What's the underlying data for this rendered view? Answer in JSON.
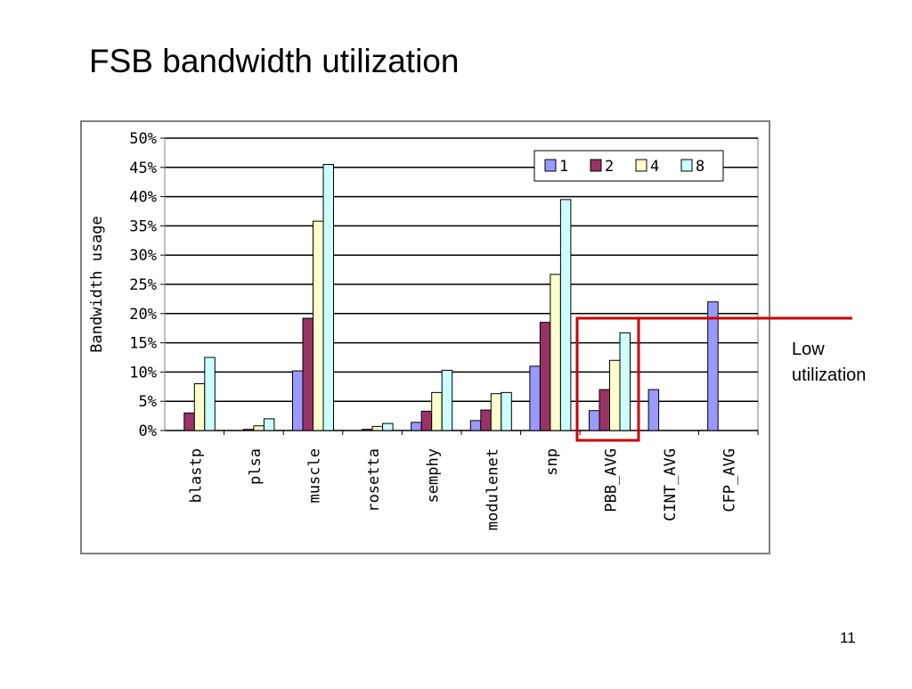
{
  "slide": {
    "title": "FSB bandwidth utilization",
    "annotation_line1": "Low",
    "annotation_line2": "utilization",
    "page_number": "11"
  },
  "colors": {
    "series_1": "#9999ff",
    "series_2": "#993366",
    "series_4": "#ffffcc",
    "series_8": "#ccffff",
    "highlight": "#cc0000",
    "grid": "#000000"
  },
  "chart_data": {
    "type": "bar",
    "ylabel": "Bandwidth usage",
    "ylim": [
      0,
      50
    ],
    "yticks": [
      "0%",
      "5%",
      "10%",
      "15%",
      "20%",
      "25%",
      "30%",
      "35%",
      "40%",
      "45%",
      "50%"
    ],
    "categories": [
      "blastp",
      "plsa",
      "muscle",
      "rosetta",
      "semphy",
      "modulenet",
      "snp",
      "PBB_AVG",
      "CINT_AVG",
      "CFP_AVG"
    ],
    "series": [
      {
        "name": "1",
        "values": [
          0,
          0,
          10.2,
          0,
          1.4,
          1.7,
          11.0,
          3.4,
          7.0,
          22.0
        ]
      },
      {
        "name": "2",
        "values": [
          3.0,
          0.2,
          19.2,
          0.2,
          3.3,
          3.5,
          18.5,
          7.0,
          0,
          0
        ]
      },
      {
        "name": "4",
        "values": [
          8.0,
          0.8,
          35.8,
          0.7,
          6.5,
          6.3,
          26.7,
          12.0,
          0,
          0
        ]
      },
      {
        "name": "8",
        "values": [
          12.5,
          2.0,
          45.5,
          1.2,
          10.3,
          6.5,
          39.5,
          16.7,
          0,
          0
        ]
      }
    ],
    "legend_position": "top-right",
    "grid": true,
    "highlight_category": "PBB_AVG"
  }
}
